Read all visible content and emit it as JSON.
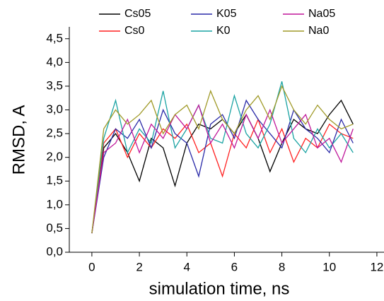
{
  "chart_data": {
    "type": "line",
    "x_label": "simulation time, ns",
    "y_label": "RMSD, A",
    "x": [
      0,
      0.5,
      1,
      1.5,
      2,
      2.5,
      3,
      3.5,
      4,
      4.5,
      5,
      5.5,
      6,
      6.5,
      7,
      7.5,
      8,
      8.5,
      9,
      9.5,
      10,
      10.5,
      11
    ],
    "series": [
      {
        "name": "Cs05",
        "color": "#000000",
        "values": [
          0.4,
          2.2,
          2.5,
          2.1,
          1.5,
          2.4,
          2.2,
          1.4,
          2.3,
          2.7,
          2.6,
          2.8,
          2.5,
          2.9,
          2.4,
          1.7,
          2.3,
          2.8,
          2.6,
          2.5,
          2.9,
          3.2,
          2.7
        ]
      },
      {
        "name": "Cs0",
        "color": "#ff2020",
        "values": [
          0.4,
          2.3,
          2.6,
          2.0,
          2.5,
          2.2,
          2.6,
          2.4,
          2.7,
          2.1,
          2.3,
          1.6,
          2.5,
          2.2,
          2.8,
          2.1,
          2.6,
          1.9,
          2.4,
          2.2,
          2.7,
          2.5,
          2.4
        ]
      },
      {
        "name": "K05",
        "color": "#2a2aa8",
        "values": [
          0.4,
          2.0,
          2.6,
          2.4,
          2.8,
          2.2,
          3.0,
          2.5,
          2.3,
          1.6,
          2.7,
          2.9,
          2.4,
          3.2,
          2.8,
          2.5,
          2.2,
          3.0,
          2.6,
          2.4,
          2.1,
          2.8,
          2.3
        ]
      },
      {
        "name": "K0",
        "color": "#1aa3a3",
        "values": [
          0.4,
          2.4,
          3.2,
          2.1,
          2.6,
          2.3,
          3.4,
          2.2,
          2.6,
          3.1,
          2.4,
          2.3,
          3.3,
          2.5,
          2.2,
          2.7,
          3.6,
          2.4,
          2.1,
          2.6,
          2.2,
          2.5,
          2.1
        ]
      },
      {
        "name": "Na05",
        "color": "#c0179a",
        "values": [
          0.4,
          2.1,
          2.3,
          2.8,
          2.1,
          2.7,
          2.4,
          2.9,
          2.6,
          3.1,
          2.3,
          2.7,
          2.2,
          2.9,
          2.4,
          3.0,
          2.3,
          2.6,
          2.9,
          2.2,
          2.4,
          1.9,
          2.6
        ]
      },
      {
        "name": "Na0",
        "color": "#a09a28",
        "values": [
          0.4,
          2.6,
          3.0,
          2.7,
          2.9,
          3.2,
          2.5,
          2.9,
          3.1,
          2.6,
          3.4,
          2.8,
          2.5,
          3.0,
          3.3,
          2.8,
          3.5,
          3.0,
          2.7,
          3.1,
          2.8,
          2.6,
          2.7
        ]
      }
    ],
    "xlim": [
      -0.95,
      12.3
    ],
    "xticks": [
      0,
      2,
      4,
      6,
      8,
      10,
      12
    ],
    "ylim": [
      0,
      4.75
    ],
    "yticks": [
      {
        "value": 0,
        "label": "0,0"
      },
      {
        "value": 0.5,
        "label": "0,5"
      },
      {
        "value": 1,
        "label": "1,0"
      },
      {
        "value": 1.5,
        "label": "1,5"
      },
      {
        "value": 2,
        "label": "2,0"
      },
      {
        "value": 2.5,
        "label": "2,5"
      },
      {
        "value": 3,
        "label": "3,0"
      },
      {
        "value": 3.5,
        "label": "3,5"
      },
      {
        "value": 4,
        "label": "4,0"
      },
      {
        "value": 4.5,
        "label": "4,5"
      }
    ],
    "grid": false
  }
}
